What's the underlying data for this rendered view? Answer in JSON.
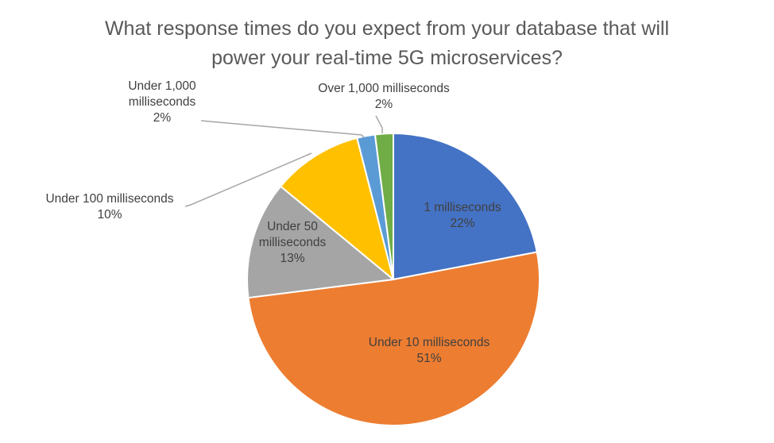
{
  "title_lines": [
    "What response times do you expect from your database that will",
    "power your real-time 5G microservices?"
  ],
  "chart_data": {
    "type": "pie",
    "title": "What response times do you expect from your database that will power your real-time 5G microservices?",
    "unit": "%",
    "slices": [
      {
        "label_lines": [
          "1 milliseconds"
        ],
        "value": 22,
        "value_text": "22%",
        "color": "#4472C4",
        "label_position": "inside"
      },
      {
        "label_lines": [
          "Under 10 milliseconds"
        ],
        "value": 51,
        "value_text": "51%",
        "color": "#ED7D31",
        "label_position": "inside"
      },
      {
        "label_lines": [
          "Under 50",
          "milliseconds"
        ],
        "value": 13,
        "value_text": "13%",
        "color": "#A5A5A5",
        "label_position": "inside"
      },
      {
        "label_lines": [
          "Under 100 milliseconds"
        ],
        "value": 10,
        "value_text": "10%",
        "color": "#FFC000",
        "label_position": "outside"
      },
      {
        "label_lines": [
          "Under 1,000",
          "milliseconds"
        ],
        "value": 2,
        "value_text": "2%",
        "color": "#5B9BD5",
        "label_position": "outside"
      },
      {
        "label_lines": [
          "Over 1,000 milliseconds"
        ],
        "value": 2,
        "value_text": "2%",
        "color": "#70AD47",
        "label_position": "outside"
      }
    ],
    "legend": "none"
  }
}
